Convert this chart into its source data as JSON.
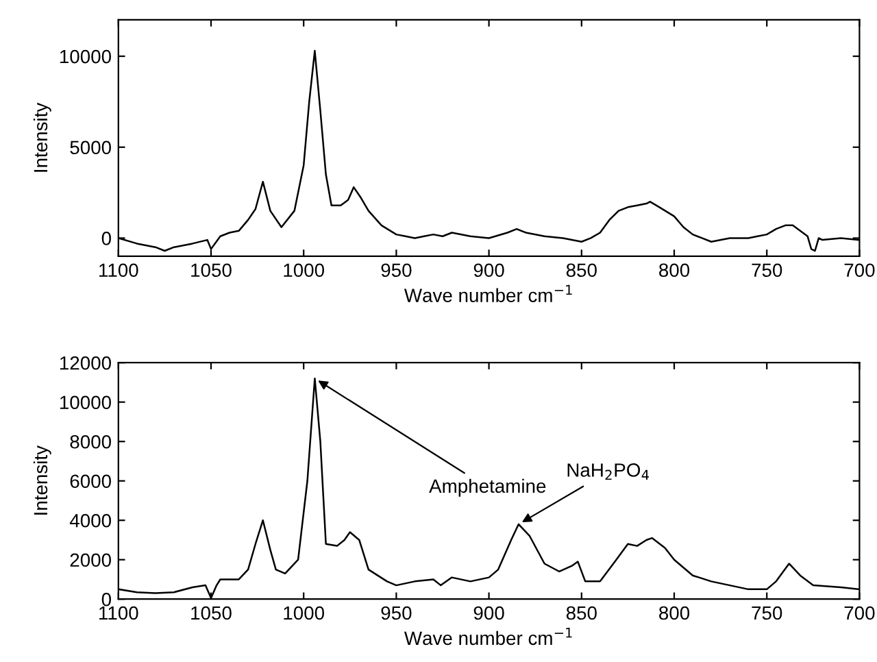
{
  "chart_data": [
    {
      "type": "line",
      "xlabel": "Wave number cm$^{−1}$",
      "ylabel": "Intensity",
      "xlim": [
        1100,
        700
      ],
      "ylim": [
        -1000,
        12000
      ],
      "xticks": [
        1100,
        1050,
        1000,
        950,
        900,
        850,
        800,
        750,
        700
      ],
      "yticks": [
        0,
        5000,
        10000
      ],
      "grid": false,
      "legend": false,
      "series": [
        {
          "color": "#000000",
          "x": [
            1100,
            1090,
            1080,
            1075,
            1070,
            1060,
            1052,
            1050,
            1045,
            1040,
            1035,
            1030,
            1026,
            1022,
            1018,
            1012,
            1005,
            1000,
            997,
            994,
            991,
            988,
            985,
            980,
            976,
            973,
            969,
            965,
            958,
            950,
            945,
            940,
            935,
            930,
            925,
            920,
            910,
            900,
            890,
            885,
            880,
            870,
            860,
            850,
            845,
            840,
            835,
            830,
            825,
            820,
            815,
            813,
            808,
            800,
            795,
            790,
            785,
            780,
            770,
            760,
            755,
            750,
            745,
            740,
            736,
            732,
            728,
            726,
            724,
            722,
            720,
            710,
            700
          ],
          "values": [
            0,
            -300,
            -500,
            -700,
            -500,
            -300,
            -100,
            -600,
            100,
            300,
            400,
            1000,
            1600,
            3100,
            1500,
            600,
            1500,
            4000,
            7500,
            10300,
            7000,
            3500,
            1800,
            1800,
            2100,
            2800,
            2200,
            1500,
            700,
            200,
            100,
            0,
            100,
            200,
            100,
            300,
            100,
            0,
            300,
            500,
            300,
            100,
            0,
            -200,
            0,
            300,
            1000,
            1500,
            1700,
            1800,
            1900,
            2000,
            1700,
            1200,
            600,
            200,
            0,
            -200,
            0,
            0,
            100,
            200,
            500,
            700,
            700,
            400,
            100,
            -600,
            -700,
            0,
            -100,
            0,
            -100
          ]
        }
      ]
    },
    {
      "type": "line",
      "xlabel": "Wave number cm$^{−1}$",
      "ylabel": "Intensity",
      "xlim": [
        1100,
        700
      ],
      "ylim": [
        0,
        12000
      ],
      "xticks": [
        1100,
        1050,
        1000,
        950,
        900,
        850,
        800,
        750,
        700
      ],
      "yticks": [
        0,
        2000,
        4000,
        6000,
        8000,
        10000,
        12000
      ],
      "grid": false,
      "legend": false,
      "annotations": [
        {
          "text": "Amphetamine",
          "x": 994,
          "y": 11200
        },
        {
          "text": "NaH$_{2}$PO$_{4}$",
          "x": 884,
          "y": 3800
        }
      ],
      "series": [
        {
          "color": "#000000",
          "x": [
            1100,
            1090,
            1080,
            1070,
            1060,
            1053,
            1050,
            1047,
            1045,
            1035,
            1030,
            1026,
            1022,
            1018,
            1015,
            1010,
            1003,
            998,
            994,
            991,
            988,
            982,
            978,
            975,
            970,
            965,
            955,
            950,
            940,
            930,
            926,
            920,
            910,
            900,
            895,
            888,
            884,
            878,
            870,
            862,
            855,
            852,
            848,
            840,
            832,
            825,
            820,
            815,
            812,
            805,
            800,
            790,
            780,
            770,
            760,
            750,
            745,
            738,
            732,
            725,
            710,
            700
          ],
          "values": [
            500,
            350,
            300,
            350,
            600,
            700,
            50,
            700,
            1000,
            1000,
            1500,
            2800,
            4000,
            2500,
            1500,
            1300,
            2000,
            6000,
            11200,
            8000,
            2800,
            2700,
            3000,
            3400,
            3000,
            1500,
            900,
            700,
            900,
            1000,
            700,
            1100,
            900,
            1100,
            1500,
            3000,
            3800,
            3200,
            1800,
            1400,
            1700,
            1900,
            900,
            900,
            1900,
            2800,
            2700,
            3000,
            3100,
            2600,
            2000,
            1200,
            900,
            700,
            500,
            500,
            900,
            1800,
            1200,
            700,
            600,
            500
          ]
        }
      ]
    }
  ]
}
